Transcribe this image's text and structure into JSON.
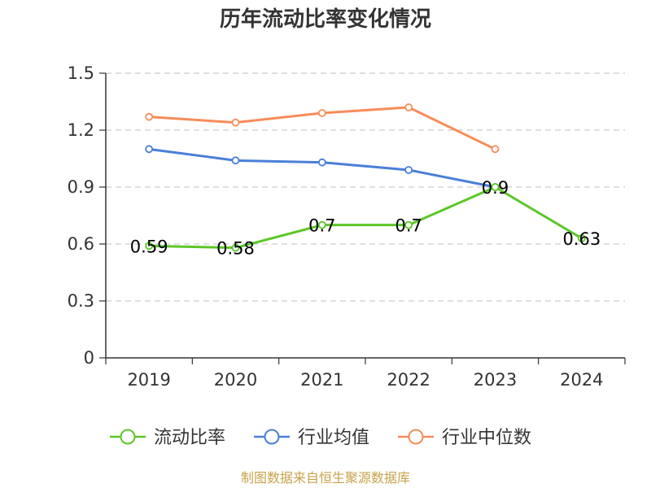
{
  "chart_data": {
    "type": "line",
    "title": "历年流动比率变化情况",
    "categories": [
      "2019",
      "2020",
      "2021",
      "2022",
      "2023",
      "2024"
    ],
    "yticks": [
      "0",
      "0.3",
      "0.6",
      "0.9",
      "1.2",
      "1.5"
    ],
    "ylim": [
      0,
      1.5
    ],
    "grid": true,
    "legend_position": "bottom",
    "series": [
      {
        "name": "流动比率",
        "color": "#5bc726",
        "values": [
          0.59,
          0.58,
          0.7,
          0.7,
          0.9,
          0.63
        ],
        "labels": [
          "0.59",
          "0.58",
          "0.7",
          "0.7",
          "0.9",
          "0.63"
        ]
      },
      {
        "name": "行业均值",
        "color": "#4a7fd8",
        "values": [
          1.1,
          1.04,
          1.03,
          0.99,
          0.9,
          null
        ]
      },
      {
        "name": "行业中位数",
        "color": "#f78c5a",
        "values": [
          1.27,
          1.24,
          1.29,
          1.32,
          1.1,
          null
        ]
      }
    ]
  },
  "source_note": "制图数据来自恒生聚源数据库"
}
